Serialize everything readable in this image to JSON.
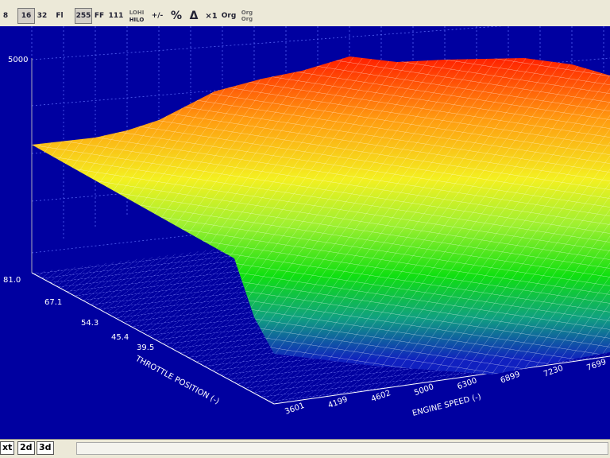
{
  "toolbar": {
    "buttons": [
      "8",
      "16",
      "32",
      "Fl",
      "255",
      "FF",
      "111",
      "LOHI",
      "HILO",
      "+/-",
      "%",
      "Δ",
      "×1",
      "Org",
      "Org",
      "Org"
    ]
  },
  "view": {
    "z_tick": "5000",
    "throttle_axis": {
      "title": "THROTTLE POSITION (-)",
      "ticks": [
        "81.0",
        "67.1",
        "54.3",
        "45.4",
        "39.5"
      ]
    },
    "engine_axis": {
      "title": "ENGINE SPEED (-)",
      "ticks": [
        "3601",
        "4199",
        "4602",
        "5000",
        "6300",
        "6899",
        "7230",
        "7699"
      ]
    }
  },
  "tabs": [
    "xt",
    "2d",
    "3d"
  ]
}
